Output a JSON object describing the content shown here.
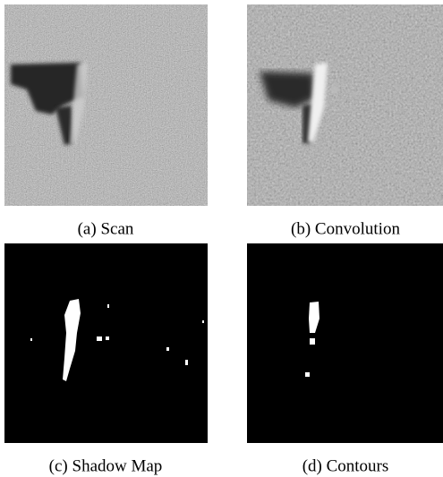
{
  "figure": {
    "panels": [
      {
        "caption": "(a) Scan"
      },
      {
        "caption": "(b) Convolution"
      },
      {
        "caption": "(c) Shadow Map"
      },
      {
        "caption": "(d) Contours"
      }
    ]
  }
}
